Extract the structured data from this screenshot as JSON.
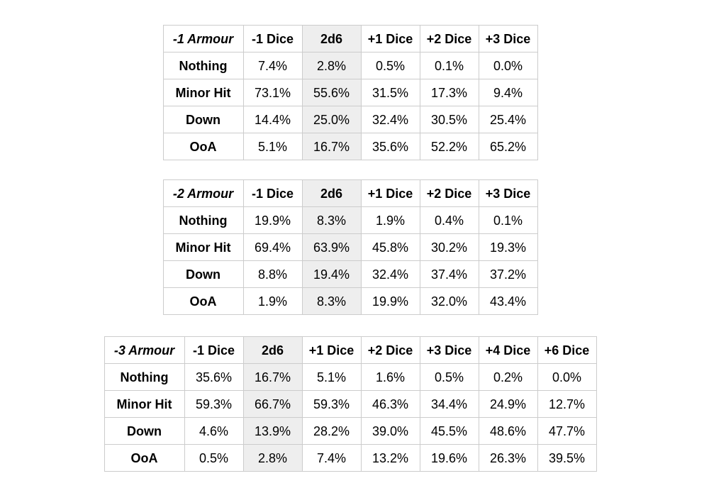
{
  "page": {
    "background": "#ffffff"
  },
  "colors": {
    "border": "#cccccc",
    "shaded_column": "#eeeeee",
    "text": "#000000"
  },
  "chart_data": [
    {
      "type": "table",
      "title": "-1 Armour",
      "columns": [
        "-1 Armour",
        "-1 Dice",
        "2d6",
        "+1 Dice",
        "+2 Dice",
        "+3 Dice"
      ],
      "shaded_column": "2d6",
      "shaded_column_index": 2,
      "row_labels": [
        "Nothing",
        "Minor Hit",
        "Down",
        "OoA"
      ],
      "rows": [
        [
          "7.4%",
          "2.8%",
          "0.5%",
          "0.1%",
          "0.0%"
        ],
        [
          "73.1%",
          "55.6%",
          "31.5%",
          "17.3%",
          "9.4%"
        ],
        [
          "14.4%",
          "25.0%",
          "32.4%",
          "30.5%",
          "25.4%"
        ],
        [
          "5.1%",
          "16.7%",
          "35.6%",
          "52.2%",
          "65.2%"
        ]
      ]
    },
    {
      "type": "table",
      "title": "-2 Armour",
      "columns": [
        "-2 Armour",
        "-1 Dice",
        "2d6",
        "+1 Dice",
        "+2 Dice",
        "+3 Dice"
      ],
      "shaded_column": "2d6",
      "shaded_column_index": 2,
      "row_labels": [
        "Nothing",
        "Minor Hit",
        "Down",
        "OoA"
      ],
      "rows": [
        [
          "19.9%",
          "8.3%",
          "1.9%",
          "0.4%",
          "0.1%"
        ],
        [
          "69.4%",
          "63.9%",
          "45.8%",
          "30.2%",
          "19.3%"
        ],
        [
          "8.8%",
          "19.4%",
          "32.4%",
          "37.4%",
          "37.2%"
        ],
        [
          "1.9%",
          "8.3%",
          "19.9%",
          "32.0%",
          "43.4%"
        ]
      ]
    },
    {
      "type": "table",
      "title": "-3 Armour",
      "columns": [
        "-3 Armour",
        "-1 Dice",
        "2d6",
        "+1 Dice",
        "+2 Dice",
        "+3 Dice",
        "+4 Dice",
        "+6 Dice"
      ],
      "shaded_column": "2d6",
      "shaded_column_index": 2,
      "row_labels": [
        "Nothing",
        "Minor Hit",
        "Down",
        "OoA"
      ],
      "rows": [
        [
          "35.6%",
          "16.7%",
          "5.1%",
          "1.6%",
          "0.5%",
          "0.2%",
          "0.0%"
        ],
        [
          "59.3%",
          "66.7%",
          "59.3%",
          "46.3%",
          "34.4%",
          "24.9%",
          "12.7%"
        ],
        [
          "4.6%",
          "13.9%",
          "28.2%",
          "39.0%",
          "45.5%",
          "48.6%",
          "47.7%"
        ],
        [
          "0.5%",
          "2.8%",
          "7.4%",
          "13.2%",
          "19.6%",
          "26.3%",
          "39.5%"
        ]
      ]
    }
  ]
}
